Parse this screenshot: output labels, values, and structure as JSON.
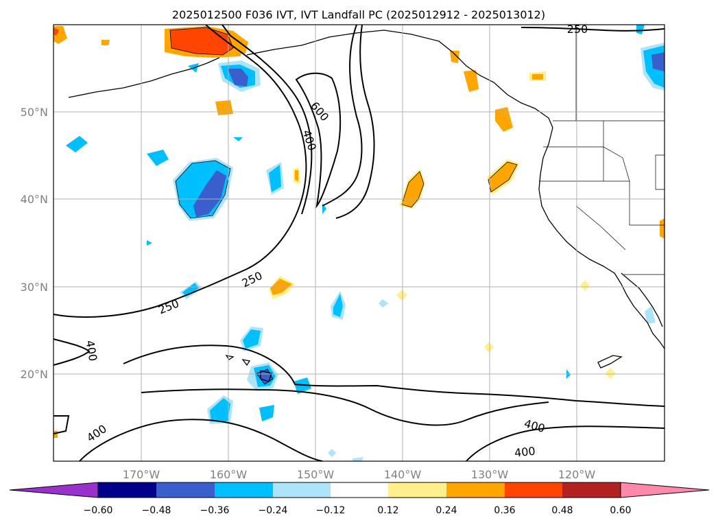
{
  "title": "2025012500 F036 IVT, IVT Landfall PC (2025012912 - 2025013012)",
  "lon_ticks": [
    "170°W",
    "160°W",
    "150°W",
    "140°W",
    "130°W",
    "120°W"
  ],
  "lat_ticks": [
    "50°N",
    "40°N",
    "30°N",
    "20°N"
  ],
  "contour_levels": [
    "250",
    "400",
    "600"
  ],
  "colorbar": {
    "ticks": [
      "−0.60",
      "−0.48",
      "−0.36",
      "−0.24",
      "−0.12",
      "0.12",
      "0.24",
      "0.36",
      "0.48",
      "0.60"
    ],
    "under_color": "#9932cc",
    "over_color": "#ff89ab",
    "colors": [
      "#00008b",
      "#3a5fcd",
      "#00bfff",
      "#aee4fa",
      "#ffffff",
      "#fff08c",
      "#ffa500",
      "#ff4500",
      "#b22222"
    ]
  },
  "chart_data": {
    "type": "map",
    "title": "2025012500 F036 IVT, IVT Landfall PC (2025012912 - 2025013012)",
    "projection": "PlateCarree",
    "extent": {
      "lon_min": -180,
      "lon_max": -110,
      "lat_min": 10,
      "lat_max": 60
    },
    "grid": true,
    "contours": [
      250,
      400,
      600
    ],
    "contour_label_count": 9,
    "shaded_field_range": [
      -0.6,
      0.6
    ],
    "shaded_levels": [
      -0.6,
      -0.48,
      -0.36,
      -0.24,
      -0.12,
      0.12,
      0.24,
      0.36,
      0.48,
      0.6
    ],
    "colorbar_extend": "both"
  }
}
